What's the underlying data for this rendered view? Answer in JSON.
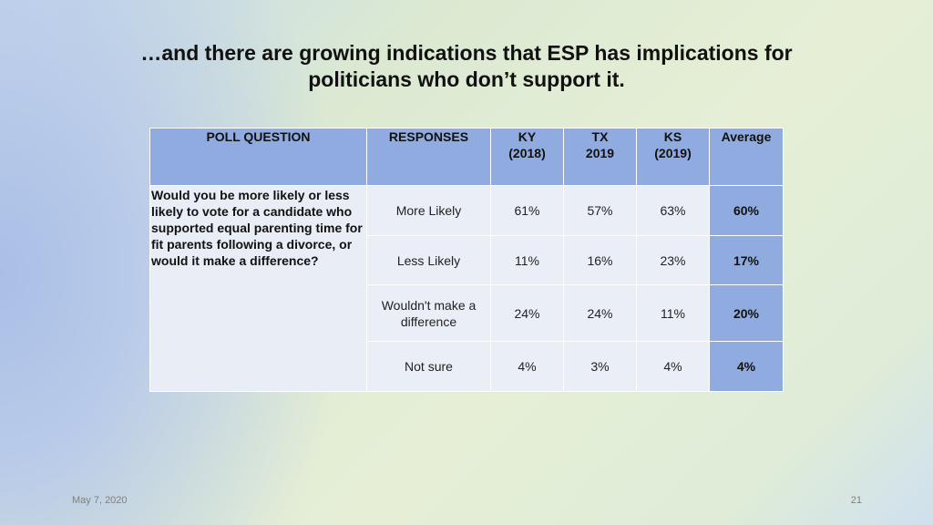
{
  "slide": {
    "title_line1": "…and there are growing indications that ESP has implications for",
    "title_line2": "politicians who don’t support it."
  },
  "table": {
    "headers": {
      "question": "POLL QUESTION",
      "responses": "RESPONSES",
      "ky": "KY",
      "ky_year": "(2018)",
      "tx": "TX",
      "tx_year": "2019",
      "ks": "KS",
      "ks_year": "(2019)",
      "average": "Average"
    },
    "question": "Would you be more likely or less likely to vote for a candidate who supported equal parenting time for fit parents following a divorce, or would it make a difference?",
    "rows": [
      {
        "response": "More Likely",
        "ky": "61%",
        "tx": "57%",
        "ks": "63%",
        "average": "60%"
      },
      {
        "response": "Less Likely",
        "ky": "11%",
        "tx": "16%",
        "ks": "23%",
        "average": "17%"
      },
      {
        "response": "Wouldn't make a difference",
        "ky": "24%",
        "tx": "24%",
        "ks": "11%",
        "average": "20%"
      },
      {
        "response": "Not sure",
        "ky": "4%",
        "tx": "3%",
        "ks": "4%",
        "average": "4%"
      }
    ]
  },
  "footer": {
    "date": "May 7, 2020",
    "page": "21"
  }
}
